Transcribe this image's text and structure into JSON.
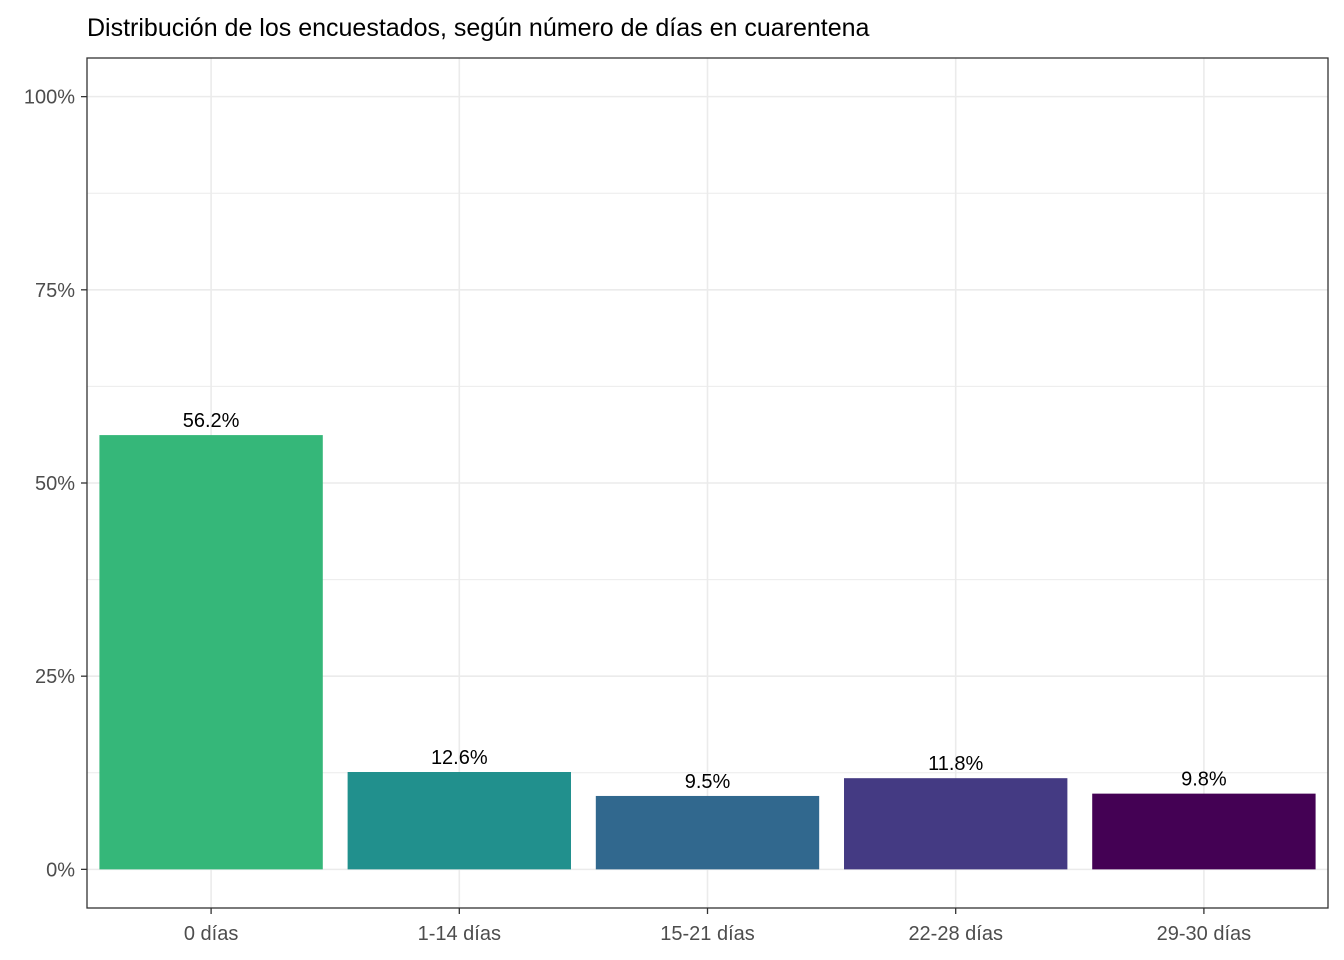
{
  "chart_data": {
    "type": "bar",
    "title": "Distribución de los encuestados, según número de días en cuarentena",
    "xlabel": "",
    "ylabel": "",
    "categories": [
      "0 días",
      "1-14 días",
      "15-21 días",
      "22-28 días",
      "29-30 días"
    ],
    "values": [
      56.2,
      12.6,
      9.5,
      11.8,
      9.8
    ],
    "data_labels": [
      "56.2%",
      "12.6%",
      "9.5%",
      "11.8%",
      "9.8%"
    ],
    "colors": [
      "#35b779",
      "#21908d",
      "#31688e",
      "#443a83",
      "#440154"
    ],
    "ylim": [
      -5,
      105
    ],
    "yticks": [
      0,
      25,
      50,
      75,
      100
    ],
    "ytick_labels": [
      "0%",
      "25%",
      "50%",
      "75%",
      "100%"
    ],
    "grid": true,
    "legend": "none"
  }
}
